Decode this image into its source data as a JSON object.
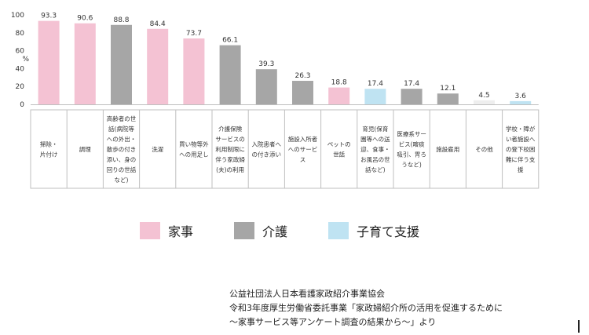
{
  "chart_data": {
    "type": "bar",
    "y_unit_label": "%",
    "ylim": [
      0,
      100
    ],
    "yticks": [
      0,
      20,
      40,
      60,
      80,
      100
    ],
    "grid": false,
    "categories": [
      "掃除・\n片付け",
      "調理",
      "高齢者の世\n話(病院等\nへの外出・\n散歩の付き\n添い、身の\n回りの世話\nなど)",
      "洗濯",
      "買い物等外\nへの用足し",
      "介護保険\nサービスの\n利用制限に\n伴う家政婦\n(夫)の利用",
      "入院患者へ\nの付き添い",
      "施設入所者\nへのサービ\nス",
      "ペットの\n世話",
      "育児(保育\n園等への送\n迎、食事・\nお風呂の世\n話など)",
      "医療系サー\nビス(喀痰\n吸引、胃ろ\nうなど)",
      "施設雇用",
      "その他",
      "学校・障が\nい者施設へ\nの登下校困\n難に伴う支\n援"
    ],
    "values": [
      93.3,
      90.6,
      88.8,
      84.4,
      73.7,
      66.1,
      39.3,
      26.3,
      18.8,
      17.4,
      17.4,
      12.1,
      4.5,
      3.6
    ],
    "value_labels": [
      "93.3",
      "90.6",
      "88.8",
      "84.4",
      "73.7",
      "66.1",
      "39.3",
      "26.3",
      "18.8",
      "17.4",
      "17.4",
      "12.1",
      "4.5",
      "3.6"
    ],
    "groups": [
      "家事",
      "家事",
      "介護",
      "家事",
      "家事",
      "介護",
      "介護",
      "介護",
      "家事",
      "子育て支援",
      "介護",
      "介護",
      "other",
      "子育て支援"
    ],
    "group_colors": {
      "家事": "#f4c2d3",
      "介護": "#a6a6a6",
      "子育て支援": "#bfe3f2",
      "other": "#eeeeee"
    },
    "legend": [
      {
        "name": "家事",
        "color": "#f4c2d3"
      },
      {
        "name": "介護",
        "color": "#a6a6a6"
      },
      {
        "name": "子育て支援",
        "color": "#bfe3f2"
      }
    ],
    "legend_position": "bottom"
  },
  "source_lines": [
    "公益社団法人日本看護家政紹介事業協会",
    "令和3年度厚生労働省委託事業「家政婦紹介所の活用を促進するために",
    "～家事サービス等アンケート調査の結果から～」より"
  ]
}
